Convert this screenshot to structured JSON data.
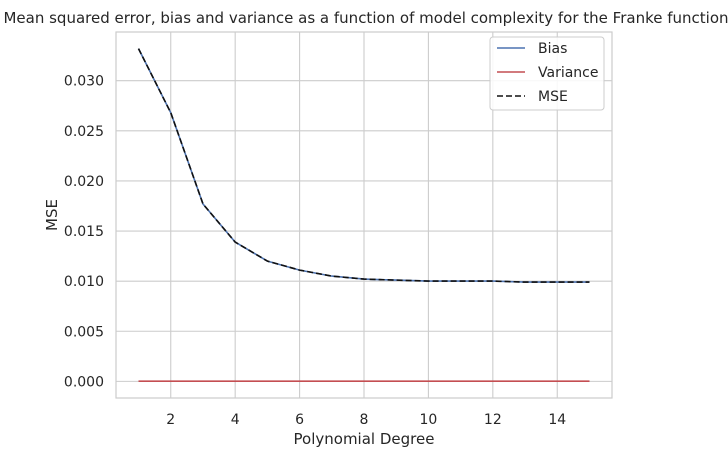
{
  "chart_data": {
    "type": "line",
    "title": "Mean squared error, bias and variance as a function of model complexity for the Franke function",
    "xlabel": "Polynomial Degree",
    "ylabel": "MSE",
    "xlim": [
      0.3,
      15.7
    ],
    "ylim": [
      -0.00166,
      0.03486
    ],
    "xticks": [
      2,
      4,
      6,
      8,
      10,
      12,
      14
    ],
    "yticks": [
      0.0,
      0.005,
      0.01,
      0.015,
      0.02,
      0.025,
      0.03
    ],
    "ytick_labels": [
      "0.000",
      "0.005",
      "0.010",
      "0.015",
      "0.020",
      "0.025",
      "0.030"
    ],
    "grid": true,
    "legend_position": "top-right",
    "x": [
      1,
      2,
      3,
      4,
      5,
      6,
      7,
      8,
      9,
      10,
      11,
      12,
      13,
      14,
      15
    ],
    "series": [
      {
        "name": "Bias",
        "color": "#4c72b0",
        "style": "solid",
        "values": [
          0.0332,
          0.0268,
          0.0177,
          0.0139,
          0.012,
          0.0111,
          0.0105,
          0.0102,
          0.0101,
          0.01,
          0.01,
          0.01,
          0.0099,
          0.0099,
          0.0099
        ]
      },
      {
        "name": "Variance",
        "color": "#c44e52",
        "style": "solid",
        "values": [
          2e-05,
          2e-05,
          2e-05,
          2e-05,
          2e-05,
          2e-05,
          2e-05,
          2e-05,
          2e-05,
          2e-05,
          2e-05,
          2e-05,
          2e-05,
          2e-05,
          2e-05
        ]
      },
      {
        "name": "MSE",
        "color": "#111111",
        "style": "dashed",
        "values": [
          0.0332,
          0.0268,
          0.0177,
          0.0139,
          0.012,
          0.0111,
          0.0105,
          0.0102,
          0.0101,
          0.01,
          0.01,
          0.01,
          0.0099,
          0.0099,
          0.0099
        ]
      }
    ]
  }
}
